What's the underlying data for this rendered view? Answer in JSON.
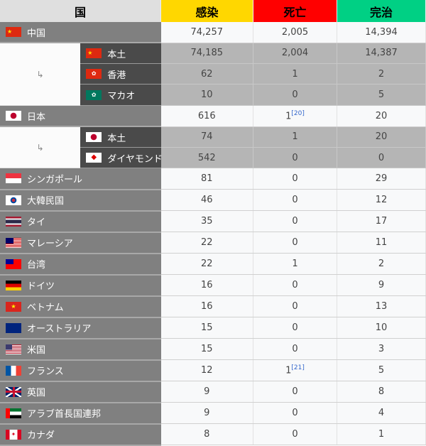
{
  "header": {
    "country": "国",
    "infected": "感染",
    "deaths": "死亡",
    "recovered": "完治",
    "colors": {
      "infected": "#ffd700",
      "deaths": "#ff0000",
      "recovered": "#00d084"
    }
  },
  "indent_symbol": "↳",
  "rows": [
    {
      "type": "main",
      "flag": "cn",
      "name": "中国",
      "infected": "74,257",
      "deaths": "2,005",
      "recovered": "14,394"
    },
    {
      "type": "sub",
      "group_start": 3,
      "flag": "cn",
      "name": "本土",
      "infected": "74,185",
      "deaths": "2,004",
      "recovered": "14,387"
    },
    {
      "type": "sub",
      "flag": "hk",
      "name": "香港",
      "infected": "62",
      "deaths": "1",
      "recovered": "2"
    },
    {
      "type": "sub",
      "flag": "mo",
      "name": "マカオ",
      "infected": "10",
      "deaths": "0",
      "recovered": "5"
    },
    {
      "type": "main",
      "flag": "jp",
      "name": "日本",
      "infected": "616",
      "deaths": "1",
      "deaths_ref": "[20]",
      "recovered": "20"
    },
    {
      "type": "sub",
      "group_start": 2,
      "flag": "jp",
      "name": "本土",
      "infected": "74",
      "deaths": "1",
      "recovered": "20"
    },
    {
      "type": "sub",
      "flag": "dp",
      "name": "ダイヤモンド・プリンセス号",
      "infected": "542",
      "deaths": "0",
      "recovered": "0"
    },
    {
      "type": "main",
      "flag": "sg",
      "name": "シンガポール",
      "infected": "81",
      "deaths": "0",
      "recovered": "29"
    },
    {
      "type": "main",
      "flag": "kr",
      "name": "大韓民国",
      "infected": "46",
      "deaths": "0",
      "recovered": "12"
    },
    {
      "type": "main",
      "flag": "th",
      "name": "タイ",
      "infected": "35",
      "deaths": "0",
      "recovered": "17"
    },
    {
      "type": "main",
      "flag": "my",
      "name": "マレーシア",
      "infected": "22",
      "deaths": "0",
      "recovered": "11"
    },
    {
      "type": "main",
      "flag": "tw",
      "name": "台湾",
      "infected": "22",
      "deaths": "1",
      "recovered": "2"
    },
    {
      "type": "main",
      "flag": "de",
      "name": "ドイツ",
      "infected": "16",
      "deaths": "0",
      "recovered": "9"
    },
    {
      "type": "main",
      "flag": "vn",
      "name": "ベトナム",
      "infected": "16",
      "deaths": "0",
      "recovered": "13"
    },
    {
      "type": "main",
      "flag": "au",
      "name": "オーストラリア",
      "infected": "15",
      "deaths": "0",
      "recovered": "10"
    },
    {
      "type": "main",
      "flag": "us",
      "name": "米国",
      "infected": "15",
      "deaths": "0",
      "recovered": "3"
    },
    {
      "type": "main",
      "flag": "fr",
      "name": "フランス",
      "infected": "12",
      "deaths": "1",
      "deaths_ref": "[21]",
      "recovered": "5"
    },
    {
      "type": "main",
      "flag": "gb",
      "name": "英国",
      "infected": "9",
      "deaths": "0",
      "recovered": "8"
    },
    {
      "type": "main",
      "flag": "ae",
      "name": "アラブ首長国連邦",
      "infected": "9",
      "deaths": "0",
      "recovered": "4"
    },
    {
      "type": "main",
      "flag": "ca",
      "name": "カナダ",
      "infected": "8",
      "deaths": "0",
      "recovered": "1"
    }
  ]
}
